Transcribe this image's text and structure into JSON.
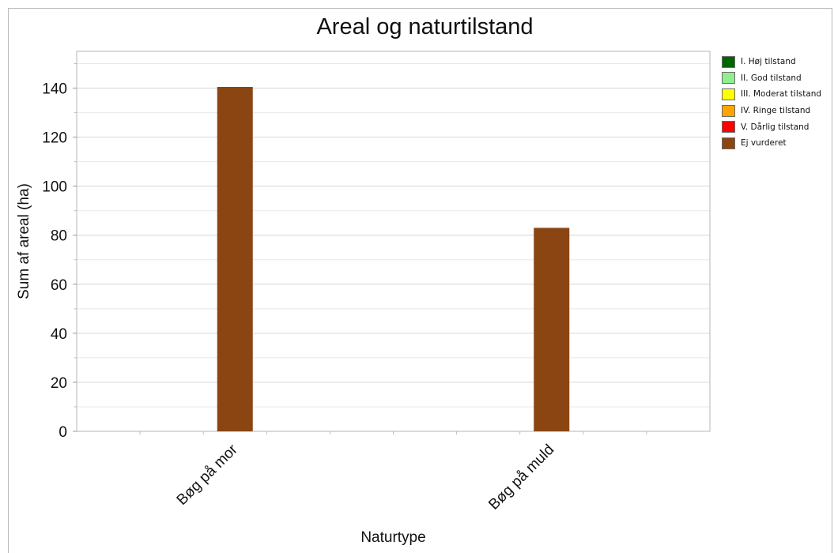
{
  "chart_data": {
    "type": "bar",
    "title": "Areal og naturtilstand",
    "xlabel": "Naturtype",
    "ylabel": "Sum af areal (ha)",
    "ylim": [
      0,
      155
    ],
    "yticks": [
      0,
      20,
      40,
      60,
      80,
      100,
      120,
      140
    ],
    "grid": true,
    "legend_position": "right",
    "categories": [
      "Bøg på mor",
      "Bøg på muld"
    ],
    "series": [
      {
        "name": "I. Høj tilstand",
        "color": "#006400",
        "values": [
          0,
          0
        ]
      },
      {
        "name": "II. God tilstand",
        "color": "#90EE90",
        "values": [
          0,
          0
        ]
      },
      {
        "name": "III. Moderat tilstand",
        "color": "#FFFF00",
        "values": [
          0,
          0
        ]
      },
      {
        "name": "IV. Ringe tilstand",
        "color": "#FFA500",
        "values": [
          0,
          0
        ]
      },
      {
        "name": "V. Dårlig tilstand",
        "color": "#FF0000",
        "values": [
          0,
          0
        ]
      },
      {
        "name": "Ej vurderet",
        "color": "#8B4513",
        "values": [
          140.5,
          83
        ]
      }
    ]
  }
}
